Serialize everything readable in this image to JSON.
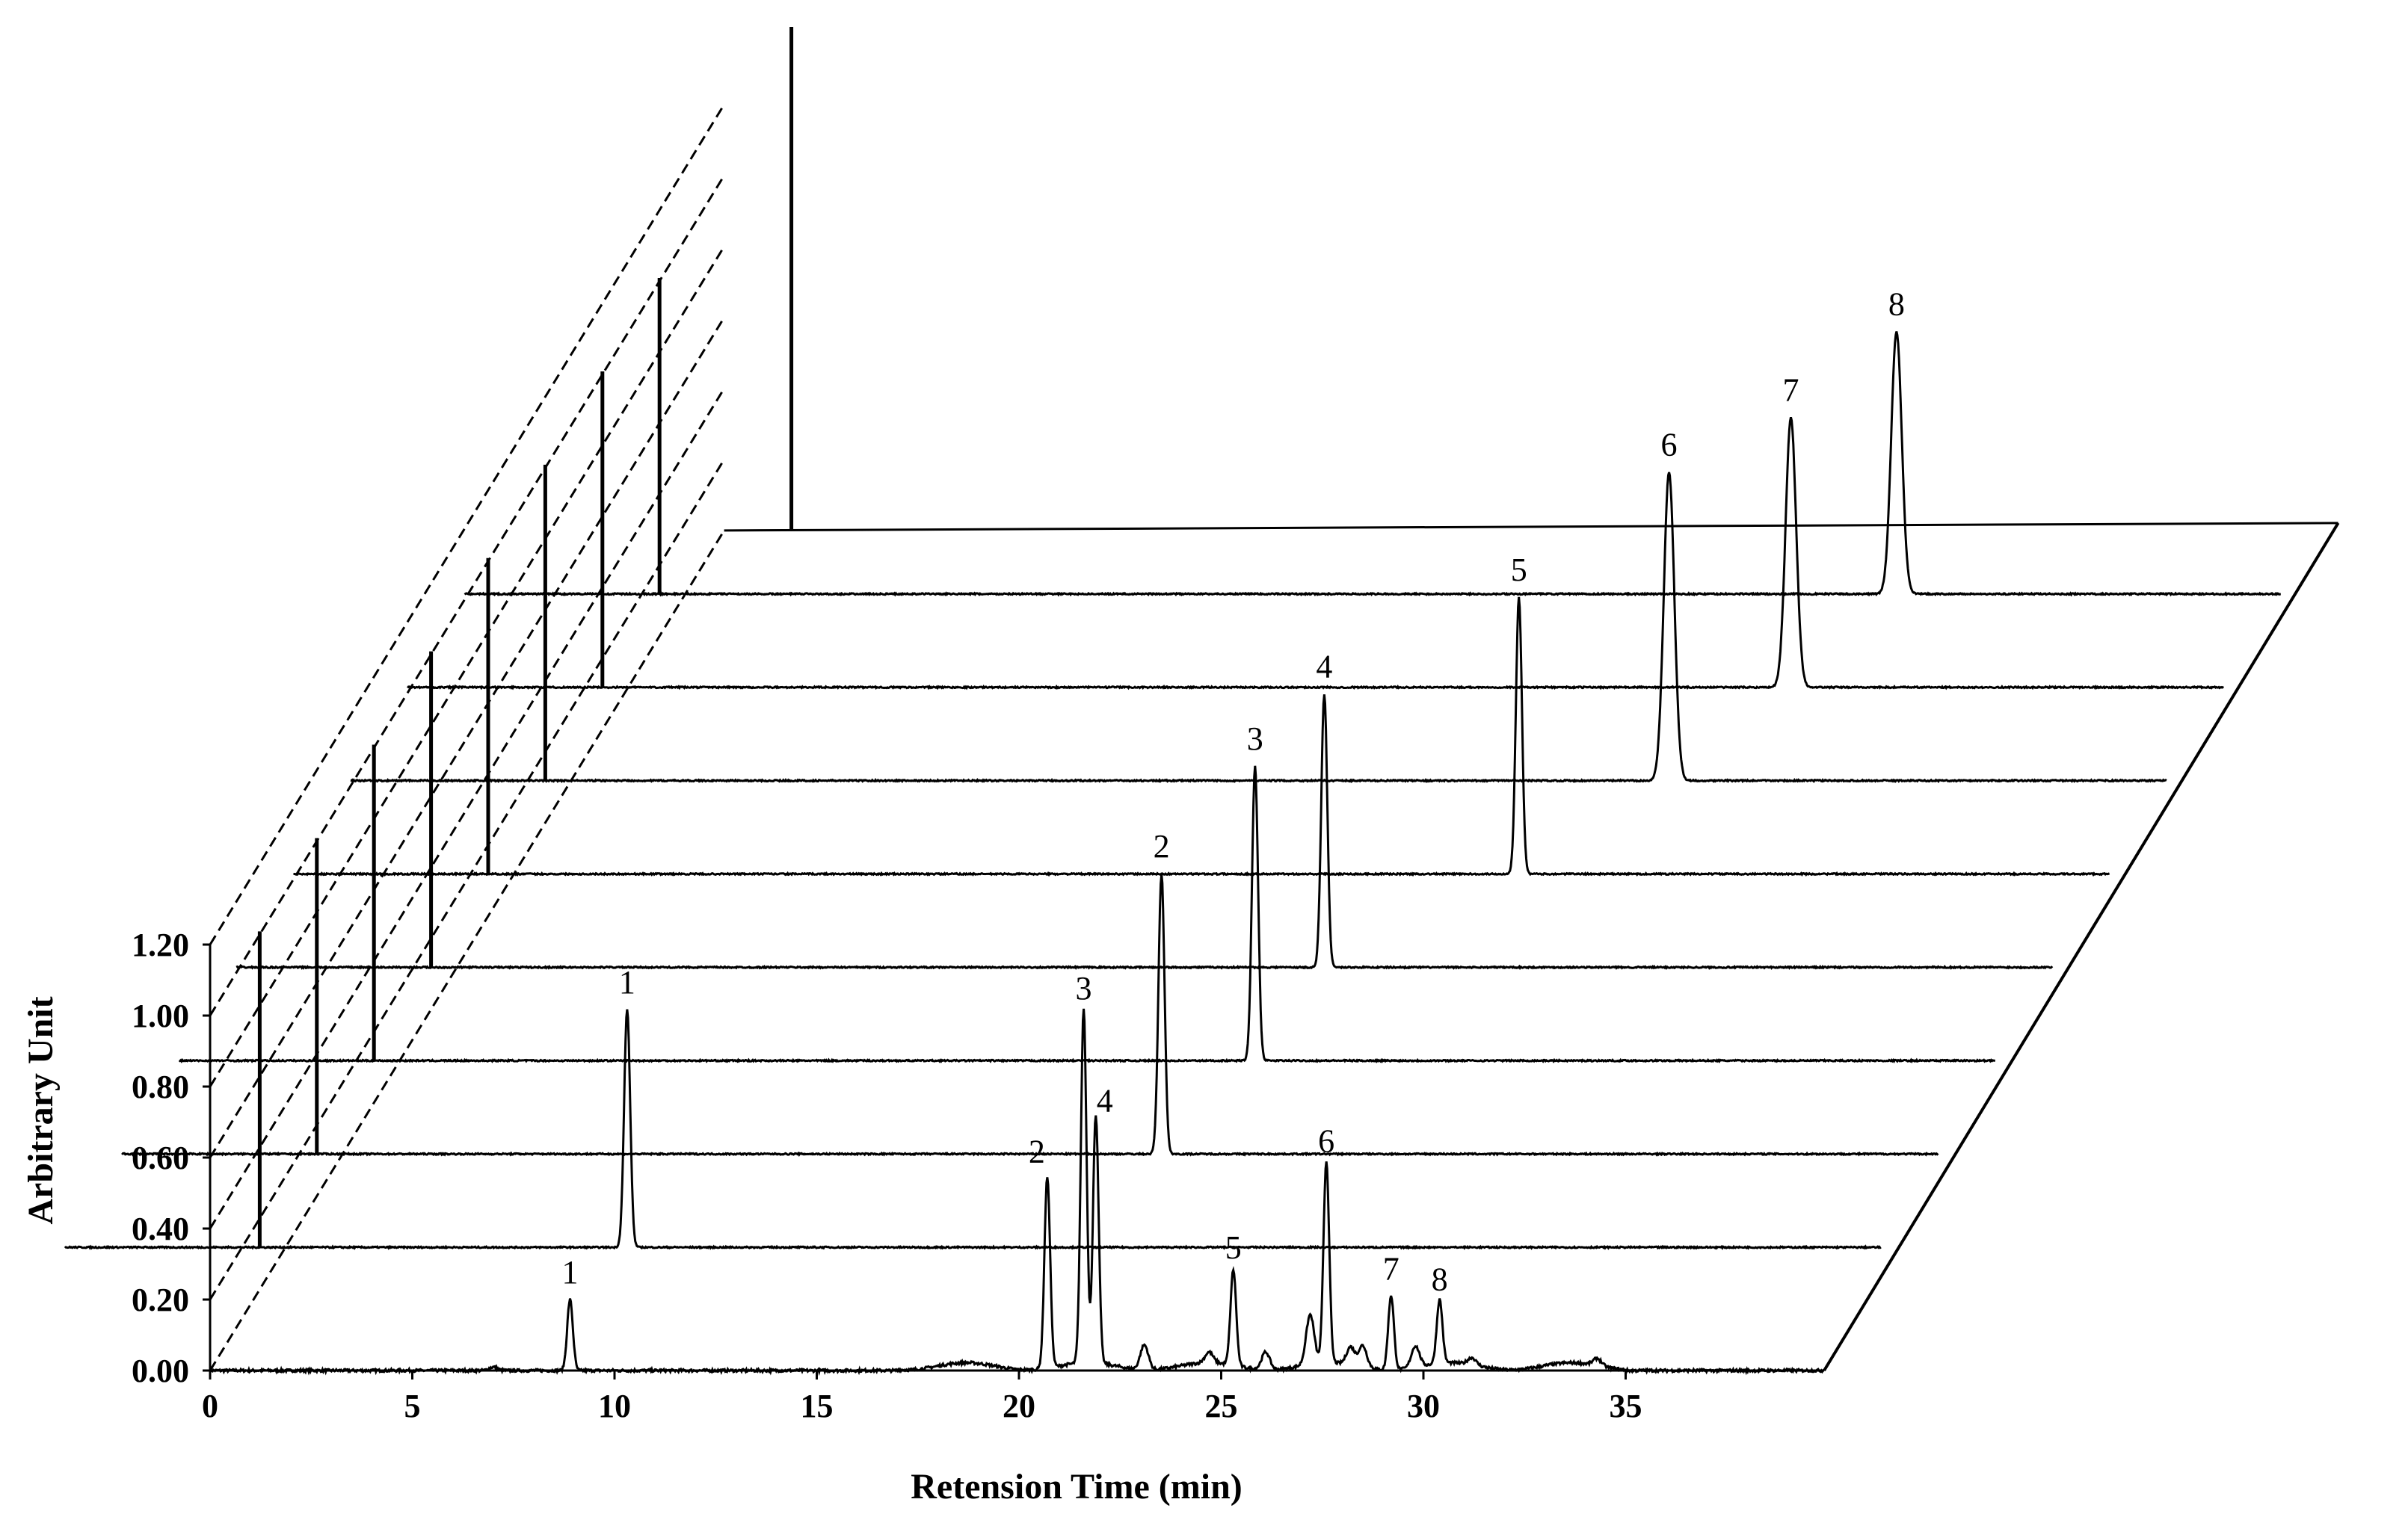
{
  "chart_data": {
    "type": "line",
    "title": "",
    "xlabel": "Retension Time (min)",
    "ylabel": "Arbitrary Unit",
    "xlim": [
      0,
      40
    ],
    "ylim": [
      0,
      1.2
    ],
    "x_ticks": [
      "0",
      "5",
      "10",
      "15",
      "20",
      "25",
      "30",
      "35"
    ],
    "x_tick_values": [
      0,
      5,
      10,
      15,
      20,
      25,
      30,
      35
    ],
    "y_ticks": [
      "0.00",
      "0.20",
      "0.40",
      "0.60",
      "0.80",
      "1.00",
      "1.20"
    ],
    "y_tick_values": [
      0,
      0.2,
      0.4,
      0.6,
      0.8,
      1.0,
      1.2
    ],
    "grid": false,
    "style": "waterfall (stacked chromatograms)",
    "traces": [
      {
        "baseline_noise": "mixture",
        "peaks": [
          {
            "label": "1",
            "x": 8.9,
            "y": 0.2
          },
          {
            "label": "2",
            "x": 20.7,
            "y": 0.54
          },
          {
            "label": "3",
            "x": 21.6,
            "y": 1.0
          },
          {
            "label": "4",
            "x": 21.9,
            "y": 0.7
          },
          {
            "label": "5",
            "x": 25.3,
            "y": 0.27
          },
          {
            "label": "6",
            "x": 27.6,
            "y": 0.57
          },
          {
            "label": "7",
            "x": 29.2,
            "y": 0.21
          },
          {
            "label": "8",
            "x": 30.4,
            "y": 0.18
          }
        ]
      },
      {
        "peaks": [
          {
            "label": "1",
            "x": 8.9,
            "y": 0.67
          }
        ]
      },
      {
        "peaks": [
          {
            "label": "2",
            "x": 20.7,
            "y": 0.79
          }
        ]
      },
      {
        "peaks": [
          {
            "label": "3",
            "x": 21.6,
            "y": 0.83
          }
        ]
      },
      {
        "peaks": [
          {
            "label": "4",
            "x": 21.9,
            "y": 0.77
          }
        ]
      },
      {
        "peaks": [
          {
            "label": "5",
            "x": 25.3,
            "y": 0.78
          }
        ]
      },
      {
        "peaks": [
          {
            "label": "6",
            "x": 27.6,
            "y": 0.87
          }
        ]
      },
      {
        "peaks": [
          {
            "label": "7",
            "x": 29.2,
            "y": 0.76
          }
        ]
      },
      {
        "peaks": [
          {
            "label": "8",
            "x": 30.4,
            "y": 0.74
          }
        ]
      }
    ]
  }
}
